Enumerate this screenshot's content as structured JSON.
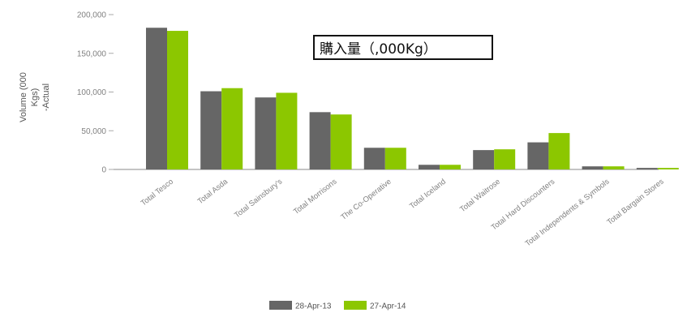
{
  "chart_data": {
    "type": "bar",
    "title": "",
    "ylabel": "Volume (000 Kgs) -Actual",
    "ylabel_lines": [
      "Volume (000",
      "Kgs)",
      "-Actual"
    ],
    "ylim": [
      0,
      200000
    ],
    "yticks": [
      0,
      50000,
      100000,
      150000,
      200000
    ],
    "ytick_labels": [
      "0",
      "50,000",
      "100,000",
      "150,000",
      "200,000"
    ],
    "grid": false,
    "legend_position": "bottom",
    "categories": [
      "Total Tesco",
      "Total Asda",
      "Total Sainsbury's",
      "Total Morrisons",
      "The Co-Operative",
      "Total Iceland",
      "Total Waitrose",
      "Total Hard Discounters",
      "Total Independents & Symbols",
      "Total Bargain Stores"
    ],
    "series": [
      {
        "name": "28-Apr-13",
        "color": "#666666",
        "values": [
          183000,
          101000,
          93000,
          74000,
          28000,
          6000,
          25000,
          35000,
          4000,
          2000
        ]
      },
      {
        "name": "27-Apr-14",
        "color": "#8cc700",
        "values": [
          179000,
          105000,
          99000,
          71000,
          28000,
          6000,
          26000,
          47000,
          4000,
          2000
        ]
      }
    ],
    "annotation": "購入量（,000Kg）"
  }
}
